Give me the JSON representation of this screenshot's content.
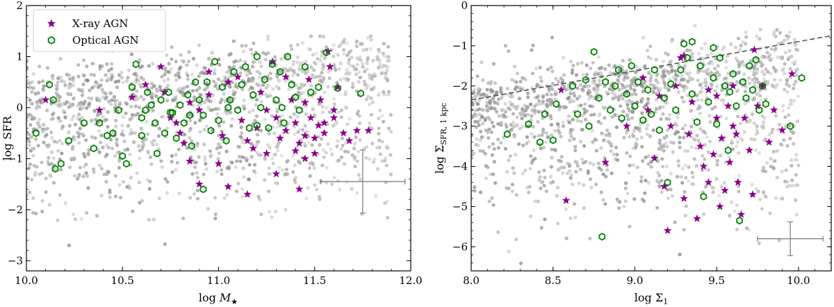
{
  "colors": {
    "xray": "#8b008b",
    "optical_edge": "#008000",
    "background_dark": "#8c8c8c",
    "background_light": "#d9d9d9",
    "errorbar": "#808080",
    "trend_line": "#555555"
  },
  "legend": {
    "xray_label": "X-ray AGN",
    "optical_label": "Optical AGN",
    "placement": "upper-left (left panel)"
  },
  "chart_data": [
    {
      "type": "scatter",
      "xlabel_main": "log ",
      "xlabel_sym": "M",
      "xlabel_sub": "★",
      "ylabel": "log SFR",
      "xlim": [
        10.0,
        12.0
      ],
      "ylim": [
        -3.2,
        2.0
      ],
      "x_ticks": [
        "10.0",
        "10.5",
        "11.0",
        "11.5",
        "12.0"
      ],
      "x_tick_values": [
        10.0,
        10.5,
        11.0,
        11.5,
        12.0
      ],
      "y_ticks": [
        "−3",
        "−2",
        "−1",
        "0",
        "1",
        "2"
      ],
      "y_tick_values": [
        -3,
        -2,
        -1,
        0,
        1,
        2
      ],
      "grid": false,
      "legend": true,
      "background_population": {
        "name": "",
        "description_count": 1400,
        "x_range": [
          10.0,
          11.9
        ],
        "y_range": [
          -2.7,
          1.4
        ]
      },
      "errorbar": {
        "x": 11.75,
        "y": -1.45,
        "xerr": 0.22,
        "yerr": 0.62
      },
      "series": [
        {
          "name": "X-ray AGN",
          "marker": "star",
          "points": [
            [
              10.1,
              0.15
            ],
            [
              10.38,
              -0.05
            ],
            [
              10.62,
              0.45
            ],
            [
              10.7,
              0.8
            ],
            [
              10.72,
              0.3
            ],
            [
              10.75,
              -0.2
            ],
            [
              10.78,
              -0.3
            ],
            [
              10.8,
              -0.5
            ],
            [
              10.82,
              -0.7
            ],
            [
              10.85,
              -1.05
            ],
            [
              10.85,
              0.1
            ],
            [
              10.9,
              -0.05
            ],
            [
              10.95,
              0.7
            ],
            [
              11.0,
              -1.1
            ],
            [
              11.02,
              -0.55
            ],
            [
              11.05,
              0.5
            ],
            [
              11.1,
              0.6
            ],
            [
              11.12,
              -0.25
            ],
            [
              11.15,
              -0.65
            ],
            [
              11.18,
              -0.8
            ],
            [
              11.2,
              -0.4
            ],
            [
              11.22,
              0.3
            ],
            [
              11.25,
              -0.9
            ],
            [
              11.28,
              0.9
            ],
            [
              11.3,
              -1.3
            ],
            [
              11.3,
              -0.2
            ],
            [
              11.32,
              -0.6
            ],
            [
              11.35,
              -0.45
            ],
            [
              11.38,
              0.15
            ],
            [
              11.4,
              -0.85
            ],
            [
              11.4,
              -0.3
            ],
            [
              11.42,
              -0.7
            ],
            [
              11.45,
              -1.0
            ],
            [
              11.45,
              -0.55
            ],
            [
              11.47,
              0.55
            ],
            [
              11.48,
              -0.2
            ],
            [
              11.5,
              -0.6
            ],
            [
              11.5,
              -0.9
            ],
            [
              11.52,
              -0.35
            ],
            [
              11.53,
              0.15
            ],
            [
              11.55,
              -0.5
            ],
            [
              11.55,
              -0.3
            ],
            [
              11.57,
              1.1
            ],
            [
              11.58,
              0.8
            ],
            [
              11.6,
              -0.2
            ],
            [
              11.62,
              0.4
            ],
            [
              11.65,
              -0.5
            ],
            [
              11.68,
              -0.65
            ],
            [
              11.72,
              -0.45
            ],
            [
              11.78,
              -0.45
            ],
            [
              11.05,
              -1.55
            ],
            [
              11.15,
              -1.7
            ],
            [
              10.9,
              -1.5
            ],
            [
              11.42,
              -1.6
            ],
            [
              10.55,
              0.2
            ],
            [
              11.25,
              -0.05
            ],
            [
              11.35,
              0.6
            ],
            [
              11.45,
              0.1
            ],
            [
              11.6,
              -0.05
            ],
            [
              10.95,
              0.25
            ]
          ]
        },
        {
          "name": "Optical AGN",
          "marker": "hexagon-open",
          "points": [
            [
              10.12,
              0.45
            ],
            [
              10.14,
              0.15
            ],
            [
              10.05,
              -0.5
            ],
            [
              10.22,
              -0.65
            ],
            [
              10.18,
              -1.1
            ],
            [
              10.15,
              -1.2
            ],
            [
              10.3,
              -0.3
            ],
            [
              10.35,
              -0.8
            ],
            [
              10.38,
              -0.3
            ],
            [
              10.42,
              -0.55
            ],
            [
              10.45,
              -0.5
            ],
            [
              10.48,
              -0.05
            ],
            [
              10.5,
              -0.95
            ],
            [
              10.52,
              -1.1
            ],
            [
              10.55,
              0.4
            ],
            [
              10.57,
              0.85
            ],
            [
              10.6,
              -0.2
            ],
            [
              10.6,
              -0.55
            ],
            [
              10.62,
              -0.05
            ],
            [
              10.63,
              0.3
            ],
            [
              10.65,
              0.05
            ],
            [
              10.67,
              -0.3
            ],
            [
              10.68,
              -0.9
            ],
            [
              10.7,
              0.15
            ],
            [
              10.72,
              -0.5
            ],
            [
              10.74,
              0.3
            ],
            [
              10.76,
              -0.1
            ],
            [
              10.78,
              -0.6
            ],
            [
              10.8,
              0.05
            ],
            [
              10.82,
              -0.3
            ],
            [
              10.84,
              0.25
            ],
            [
              10.86,
              -0.75
            ],
            [
              10.88,
              0.5
            ],
            [
              10.9,
              0.15
            ],
            [
              10.92,
              -0.15
            ],
            [
              10.94,
              0.5
            ],
            [
              10.96,
              -0.45
            ],
            [
              10.98,
              0.9
            ],
            [
              11.0,
              -0.25
            ],
            [
              11.02,
              0.4
            ],
            [
              11.04,
              -0.65
            ],
            [
              11.06,
              0.15
            ],
            [
              11.08,
              0.7
            ],
            [
              11.1,
              -0.05
            ],
            [
              11.12,
              0.45
            ],
            [
              11.14,
              0.8
            ],
            [
              11.16,
              -0.4
            ],
            [
              11.18,
              0.25
            ],
            [
              11.2,
              1.0
            ],
            [
              11.22,
              0.0
            ],
            [
              11.24,
              0.55
            ],
            [
              11.26,
              -0.4
            ],
            [
              11.28,
              0.85
            ],
            [
              11.3,
              0.15
            ],
            [
              11.32,
              0.7
            ],
            [
              11.34,
              -0.3
            ],
            [
              11.36,
              1.0
            ],
            [
              11.38,
              0.45
            ],
            [
              11.4,
              0.2
            ],
            [
              11.42,
              -0.05
            ],
            [
              11.45,
              0.8
            ],
            [
              11.48,
              0.3
            ],
            [
              11.52,
              0.4
            ],
            [
              11.56,
              1.08
            ],
            [
              11.62,
              0.38
            ],
            [
              11.74,
              0.28
            ],
            [
              10.92,
              -1.6
            ],
            [
              11.2,
              -0.35
            ],
            [
              11.05,
              0.0
            ],
            [
              10.75,
              -0.1
            ],
            [
              10.85,
              -0.15
            ],
            [
              11.33,
              0.0
            ]
          ]
        }
      ]
    },
    {
      "type": "scatter",
      "xlabel_main": "log Σ",
      "xlabel_sub": "1",
      "ylabel_main": "log Σ",
      "ylabel_sub": "SFR, 1 kpc",
      "xlim": [
        8.0,
        10.2
      ],
      "ylim": [
        -6.6,
        0.0
      ],
      "x_ticks": [
        "8.0",
        "8.5",
        "9.0",
        "9.5",
        "10.0"
      ],
      "x_tick_values": [
        8.0,
        8.5,
        9.0,
        9.5,
        10.0
      ],
      "y_ticks": [
        "−6",
        "−5",
        "−4",
        "−3",
        "−2",
        "−1",
        "0"
      ],
      "y_tick_values": [
        -6,
        -5,
        -4,
        -3,
        -2,
        -1,
        0
      ],
      "grid": false,
      "legend": false,
      "trend_line": {
        "x": [
          8.0,
          10.2
        ],
        "y": [
          -2.35,
          -0.75
        ],
        "style": "dashed"
      },
      "background_population": {
        "name": "",
        "description_count": 1400,
        "x_range": [
          8.0,
          10.0
        ],
        "y_range": [
          -6.6,
          -0.5
        ]
      },
      "errorbar": {
        "x": 9.95,
        "y": -5.8,
        "xerr": 0.2,
        "yerr": 0.42
      },
      "series": [
        {
          "name": "X-ray AGN",
          "marker": "star",
          "points": [
            [
              8.55,
              -2.1
            ],
            [
              8.58,
              -4.85
            ],
            [
              8.82,
              -3.9
            ],
            [
              8.95,
              -3.0
            ],
            [
              9.05,
              -1.8
            ],
            [
              9.08,
              -2.6
            ],
            [
              9.12,
              -3.8
            ],
            [
              9.15,
              -2.25
            ],
            [
              9.18,
              -4.5
            ],
            [
              9.2,
              -5.6
            ],
            [
              9.22,
              -3.0
            ],
            [
              9.25,
              -2.0
            ],
            [
              9.28,
              -1.3
            ],
            [
              9.3,
              -4.8
            ],
            [
              9.33,
              -3.2
            ],
            [
              9.35,
              -2.4
            ],
            [
              9.38,
              -5.3
            ],
            [
              9.4,
              -3.5
            ],
            [
              9.42,
              -4.0
            ],
            [
              9.45,
              -2.1
            ],
            [
              9.45,
              -4.4
            ],
            [
              9.48,
              -3.7
            ],
            [
              9.5,
              -2.8
            ],
            [
              9.52,
              -5.0
            ],
            [
              9.53,
              -3.3
            ],
            [
              9.55,
              -4.6
            ],
            [
              9.57,
              -2.5
            ],
            [
              9.58,
              -3.9
            ],
            [
              9.6,
              -2.0
            ],
            [
              9.62,
              -3.2
            ],
            [
              9.63,
              -4.4
            ],
            [
              9.65,
              -5.2
            ],
            [
              9.67,
              -2.8
            ],
            [
              9.7,
              -3.6
            ],
            [
              9.72,
              -4.7
            ],
            [
              9.73,
              -1.1
            ],
            [
              9.75,
              -2.5
            ],
            [
              9.78,
              -2.0
            ],
            [
              9.82,
              -3.4
            ],
            [
              9.85,
              -2.6
            ],
            [
              9.9,
              -3.1
            ],
            [
              9.96,
              -1.7
            ],
            [
              9.3,
              -1.25
            ],
            [
              9.5,
              -2.25
            ],
            [
              9.6,
              -3.0
            ]
          ]
        },
        {
          "name": "Optical AGN",
          "marker": "hexagon-open",
          "points": [
            [
              8.22,
              -3.2
            ],
            [
              8.35,
              -2.95
            ],
            [
              8.42,
              -3.4
            ],
            [
              8.45,
              -2.7
            ],
            [
              8.5,
              -3.35
            ],
            [
              8.52,
              -2.45
            ],
            [
              8.62,
              -2.0
            ],
            [
              8.65,
              -2.7
            ],
            [
              8.7,
              -1.85
            ],
            [
              8.72,
              -3.0
            ],
            [
              8.75,
              -1.15
            ],
            [
              8.78,
              -2.3
            ],
            [
              8.8,
              -5.75
            ],
            [
              8.82,
              -1.9
            ],
            [
              8.85,
              -2.6
            ],
            [
              8.88,
              -2.0
            ],
            [
              8.9,
              -1.6
            ],
            [
              8.92,
              -2.8
            ],
            [
              8.95,
              -2.2
            ],
            [
              8.98,
              -1.5
            ],
            [
              9.0,
              -2.5
            ],
            [
              9.02,
              -1.9
            ],
            [
              9.05,
              -2.85
            ],
            [
              9.08,
              -2.1
            ],
            [
              9.1,
              -2.7
            ],
            [
              9.12,
              -1.6
            ],
            [
              9.15,
              -3.1
            ],
            [
              9.18,
              -2.3
            ],
            [
              9.2,
              -4.4
            ],
            [
              9.22,
              -1.95
            ],
            [
              9.25,
              -2.6
            ],
            [
              9.28,
              -1.6
            ],
            [
              9.3,
              -0.95
            ],
            [
              9.32,
              -1.3
            ],
            [
              9.35,
              -2.2
            ],
            [
              9.38,
              -2.9
            ],
            [
              9.4,
              -1.5
            ],
            [
              9.42,
              -4.75
            ],
            [
              9.45,
              -2.4
            ],
            [
              9.48,
              -1.8
            ],
            [
              9.5,
              -2.95
            ],
            [
              9.52,
              -1.3
            ],
            [
              9.55,
              -2.0
            ],
            [
              9.57,
              -3.6
            ],
            [
              9.6,
              -1.7
            ],
            [
              9.62,
              -2.5
            ],
            [
              9.64,
              -5.35
            ],
            [
              9.66,
              -1.9
            ],
            [
              9.68,
              -2.3
            ],
            [
              9.7,
              -1.5
            ],
            [
              9.72,
              -2.1
            ],
            [
              9.74,
              -1.35
            ],
            [
              9.76,
              -2.6
            ],
            [
              9.78,
              -2.0
            ],
            [
              9.8,
              -2.45
            ],
            [
              9.95,
              -3.0
            ],
            [
              10.02,
              -1.8
            ],
            [
              9.35,
              -0.9
            ],
            [
              9.48,
              -1.05
            ],
            [
              9.58,
              -2.15
            ]
          ]
        }
      ]
    }
  ]
}
